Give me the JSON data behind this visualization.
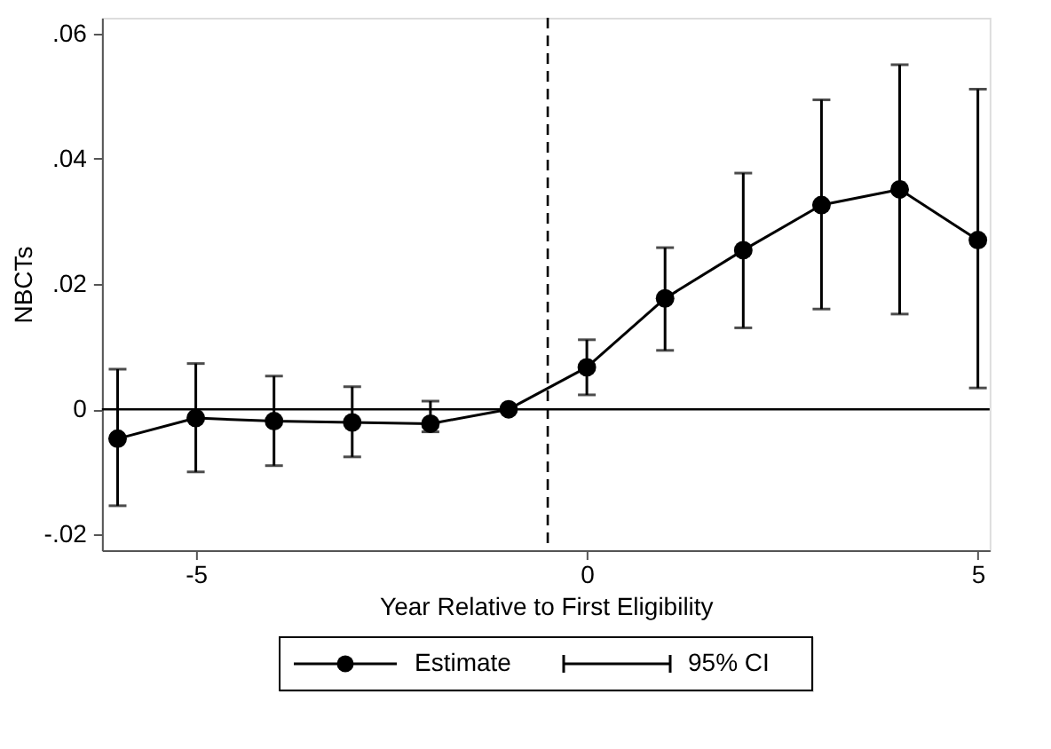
{
  "chart_data": {
    "type": "line",
    "xlabel": "Year Relative to First Eligibility",
    "ylabel": "NBCTs",
    "x": [
      -6,
      -5,
      -4,
      -3,
      -2,
      -1,
      0,
      1,
      2,
      3,
      4,
      5
    ],
    "series": [
      {
        "name": "Estimate",
        "color": "#000000",
        "values": [
          -0.0047,
          -0.0014,
          -0.0019,
          -0.0021,
          -0.0023,
          0,
          0.0067,
          0.0177,
          0.0254,
          0.0326,
          0.0351,
          0.027
        ],
        "errors": [
          [
            -0.0154,
            0.0064
          ],
          [
            -0.01,
            0.0073
          ],
          [
            -0.009,
            0.0053
          ],
          [
            -0.0076,
            0.0036
          ],
          [
            -0.0036,
            0.0013
          ],
          null,
          [
            0.0023,
            0.0111
          ],
          [
            0.0094,
            0.0258
          ],
          [
            0.013,
            0.0377
          ],
          [
            0.016,
            0.0494
          ],
          [
            0.0152,
            0.055
          ],
          [
            0.0034,
            0.0511
          ]
        ]
      }
    ],
    "annotations": [
      "95% CI"
    ],
    "xlim": [
      -6.2,
      5.15
    ],
    "xticks": [
      -5,
      0,
      5
    ],
    "ylim": [
      -0.0225,
      0.0625
    ],
    "yticks": [
      {
        "value": -0.02,
        "label": "-.02"
      },
      0,
      {
        "value": 0.02,
        "label": ".02"
      },
      {
        "value": 0.04,
        "label": ".04"
      },
      {
        "value": 0.06,
        "label": ".06"
      }
    ],
    "ref_lines": [
      {
        "axis": "x",
        "value": -0.5,
        "line_style": "dashed",
        "color": "#000000"
      },
      {
        "axis": "y",
        "value": 0,
        "line_style": "solid",
        "color": "#000000"
      }
    ],
    "marker": "circle",
    "line_style": "solid",
    "grid": false,
    "legend": "bottom"
  }
}
